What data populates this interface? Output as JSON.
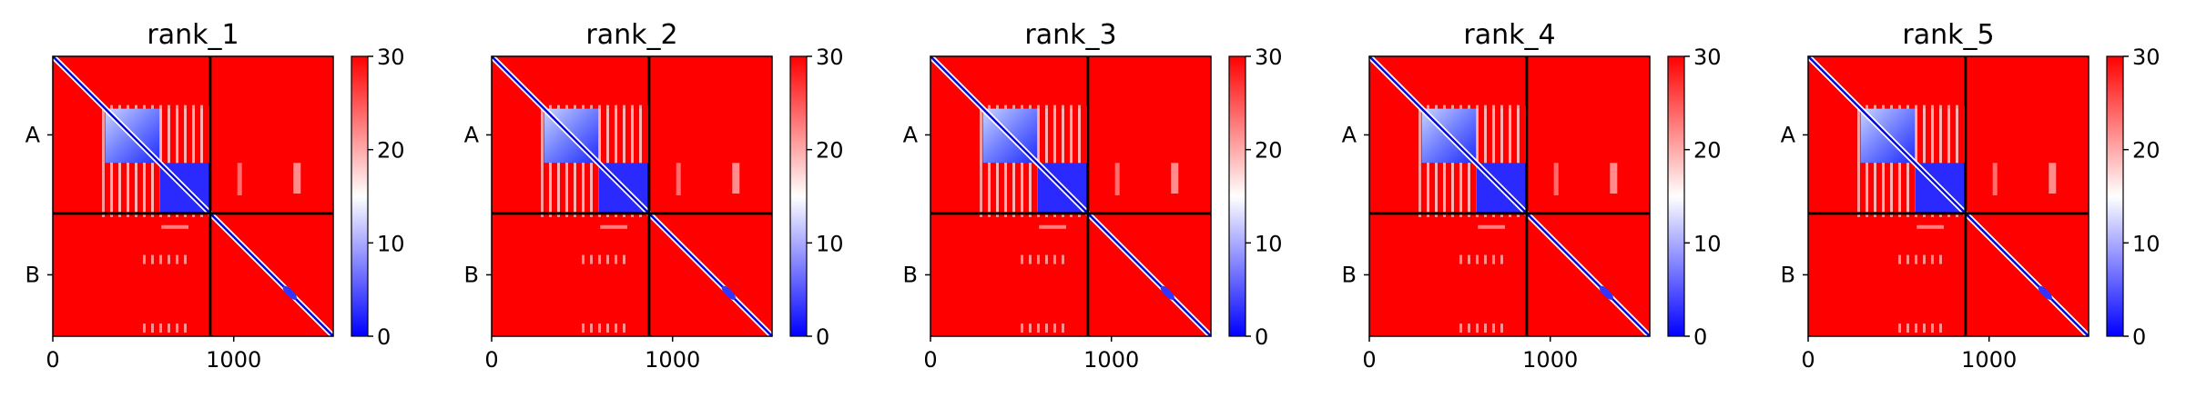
{
  "chart_data": {
    "type": "heatmap",
    "colormap": {
      "low": "#0000ff",
      "mid": "#ffffff",
      "high": "#ff0000"
    },
    "colorbar": {
      "range": [
        0,
        30
      ],
      "ticks": [
        "0",
        "10",
        "20",
        "30"
      ]
    },
    "x_axis": {
      "range": [
        0,
        1550
      ],
      "ticks": [
        {
          "value": 0,
          "label": "0"
        },
        {
          "value": 1000,
          "label": "1000"
        }
      ]
    },
    "chain_boundary": 870,
    "chain_labels": [
      {
        "label": "A",
        "center": 435
      },
      {
        "label": "B",
        "center": 1210
      }
    ],
    "panels": [
      {
        "title": "rank_1"
      },
      {
        "title": "rank_2"
      },
      {
        "title": "rank_3"
      },
      {
        "title": "rank_4"
      },
      {
        "title": "rank_5"
      }
    ]
  }
}
